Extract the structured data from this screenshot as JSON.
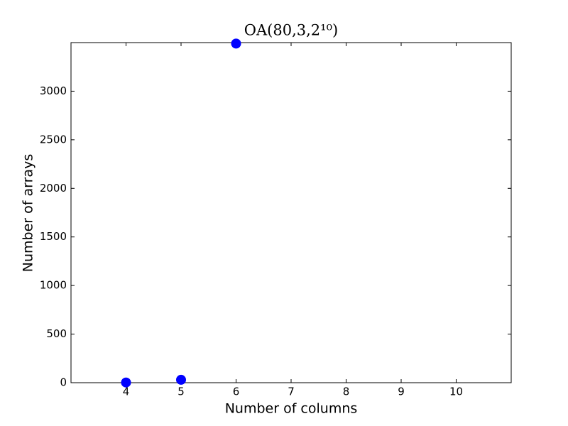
{
  "chart_data": {
    "type": "scatter",
    "title": "OA(80,3,2¹⁰)",
    "x_label": "Number of columns",
    "y_label": "Number of arrays",
    "x": [
      4,
      5,
      6
    ],
    "values": [
      2,
      30,
      3490
    ],
    "color": "#0000ff",
    "xlim": [
      3,
      11
    ],
    "xticks": [
      4,
      5,
      6,
      7,
      8,
      9,
      10
    ],
    "ylim": [
      0,
      3500
    ],
    "yticks": [
      0,
      500,
      1000,
      1500,
      2000,
      2500,
      3000
    ]
  }
}
